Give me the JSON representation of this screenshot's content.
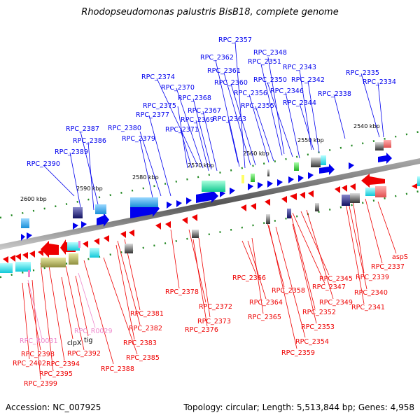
{
  "title": "Rhodopseudomonas palustris BisB18, complete genome",
  "footer": {
    "accession": "Accession: NC_007925",
    "info": "Topology: circular; Length: 5,513,844 bp; Genes: 4,958"
  },
  "colors": {
    "forward_gene": "#0000ee",
    "reverse_gene": "#ee0000",
    "rna_gene": "#ee88cc",
    "backbone": "#666666",
    "tick": "#228822"
  },
  "kbp_labels": [
    "2540 kbp",
    "2550 kbp",
    "2560 kbp",
    "2570 kbp",
    "2580 kbp",
    "2590 kbp",
    "2600 kbp"
  ],
  "top_labels": [
    "RPC_2357",
    "RPC_2348",
    "RPC_2362",
    "RPC_2351",
    "RPC_2343",
    "RPC_2361",
    "RPC_2350",
    "RPC_2342",
    "RPC_2374",
    "RPC_2360",
    "RPC_2335",
    "RPC_2370",
    "RPC_2356",
    "RPC_2346",
    "RPC_2334",
    "RPC_2338",
    "RPC_2368",
    "RPC_2375",
    "RPC_2344",
    "RPC_2367",
    "RPC_2355",
    "RPC_2377",
    "RPC_2369",
    "RPC_2363",
    "RPC_2371",
    "RPC_2380",
    "RPC_2387",
    "RPC_2379",
    "RPC_2386",
    "RPC_2389",
    "RPC_2390"
  ],
  "bottom_labels": [
    "aspS",
    "RPC_2337",
    "RPC_2339",
    "RPC_2366",
    "RPC_2345",
    "RPC_2347",
    "RPC_2358",
    "RPC_2340",
    "RPC_2378",
    "RPC_2364",
    "RPC_2349",
    "RPC_2372",
    "RPC_2352",
    "RPC_2341",
    "RPC_2381",
    "RPC_2365",
    "RPC_2373",
    "RPC_2353",
    "RPC_2376",
    "RPC_2382",
    "RPC_2354",
    "RPC_2383",
    "RPC_2359",
    "RPC_2385",
    "RPC_2388",
    "RPC_2392",
    "RPC_2394",
    "RPC_2395",
    "RPC_2398",
    "RPC_2402",
    "RPC_2399"
  ],
  "bottom_labels_black": [
    "clpX",
    "tig"
  ],
  "rna_labels": [
    "RPC_R0029",
    "RPC_R0031"
  ]
}
